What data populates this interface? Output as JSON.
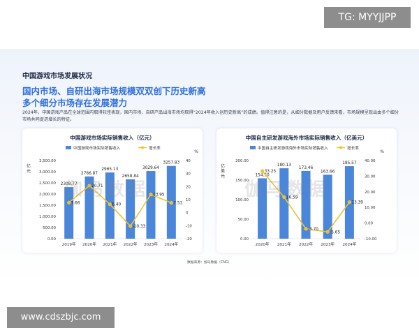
{
  "watermark": {
    "tag": "TG: MYYJJPP",
    "site": "www.cdszbjc.com",
    "ghost": "伽马数据"
  },
  "section_title": "中国游戏市场发展状况",
  "headline": [
    "国内市场、自研出海市场规模双双创下历史新高",
    "多个细分市场存在发展潜力"
  ],
  "intro": "2024年，中国游戏产品在全球范围内取得较佳表现，国内市场、自研产品出海市场均取得“2024年收入创历史新高”的成绩。值得注意的是，从细分数据及用户反馈来看，市场规模呈现出由多个细分市场共同促进增长的特征。",
  "source": "数据来源：伽马数据（CNG）",
  "colors": {
    "bar": "#4a86d9",
    "line": "#f2c12e",
    "title_blue": "#2f6fde"
  },
  "chart_data": [
    {
      "type": "bar",
      "title": "中国游戏市场实际销售收入（亿元）",
      "categories": [
        "2019年",
        "2020年",
        "2021年",
        "2022年",
        "2023年",
        "2024年"
      ],
      "series": [
        {
          "name": "中国游戏市场实际销售收入",
          "type": "bar",
          "axis": "left",
          "values": [
            2308.77,
            2786.87,
            2965.13,
            2658.84,
            3029.64,
            3257.83
          ],
          "labels": [
            "2308.77",
            "2786.87",
            "2965.13",
            "2658.84",
            "3029.64",
            "3257.83"
          ]
        },
        {
          "name": "增长率",
          "type": "line",
          "axis": "right",
          "values": [
            7.66,
            20.71,
            6.4,
            -10.33,
            13.95,
            7.53
          ],
          "labels": [
            "7.66",
            "20.71",
            "6.40",
            "-10.33",
            "13.95",
            "7.53"
          ]
        }
      ],
      "ylabel": "亿元",
      "y2label": "%",
      "ylim": [
        0,
        3500
      ],
      "y2lim": [
        -20,
        40
      ],
      "yticks": [
        "0.00",
        "500.00",
        "1,000.00",
        "1,500.00",
        "2,000.00",
        "2,500.00",
        "3,000.00",
        "3,500.00"
      ],
      "y2ticks": [
        "-20",
        "-10",
        "0",
        "10",
        "20",
        "30",
        "40"
      ],
      "legend": "top"
    },
    {
      "type": "bar",
      "title": "中国自主研发游戏海外市场实际销售收入（亿美元）",
      "categories": [
        "2020年",
        "2021年",
        "2022年",
        "2023年",
        "2024年"
      ],
      "series": [
        {
          "name": "中国自主研发游戏海外市场实际销售收入",
          "type": "bar",
          "axis": "left",
          "values": [
            154.5,
            180.13,
            173.46,
            163.66,
            185.57
          ],
          "labels": [
            "154.50",
            "180.13",
            "173.46",
            "163.66",
            "185.57"
          ]
        },
        {
          "name": "增长率",
          "type": "line",
          "axis": "right",
          "values": [
            33.25,
            16.59,
            -3.7,
            -5.65,
            13.39
          ],
          "labels": [
            "33.25",
            "16.59",
            "-3.70",
            "-5.65",
            "13.39"
          ]
        }
      ],
      "ylabel": "亿美元",
      "y2label": "%",
      "ylim": [
        0,
        200
      ],
      "y2lim": [
        -10,
        40
      ],
      "yticks": [
        "0.00",
        "50.00",
        "100.00",
        "150.00",
        "200.00"
      ],
      "y2ticks": [
        "-10.00",
        "0.00",
        "10.00",
        "20.00",
        "30.00",
        "40.00"
      ],
      "legend": "top"
    }
  ]
}
